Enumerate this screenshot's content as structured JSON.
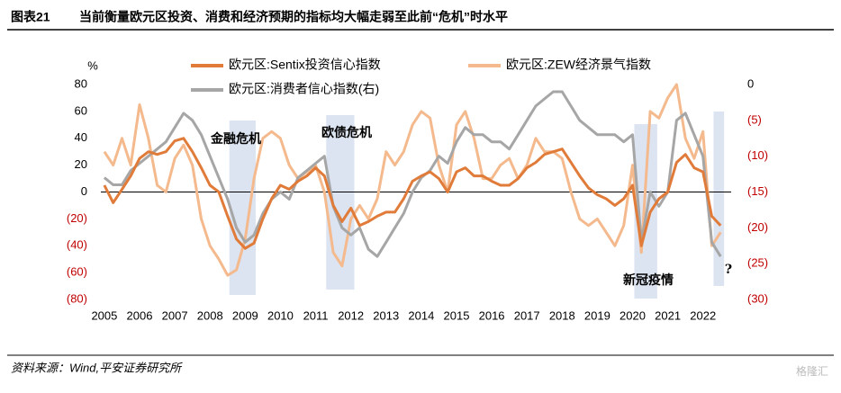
{
  "chart_data": {
    "type": "line",
    "title": "图表21",
    "subtitle": "当前衡量欧元区投资、消费和经济预期的指标均大幅走弱至此前“危机”时水平",
    "source": "资料来源：Wind,平安证券研究所",
    "watermark": "格隆汇",
    "y_unit": "%",
    "x": [
      2005,
      2005.25,
      2005.5,
      2005.75,
      2006,
      2006.25,
      2006.5,
      2006.75,
      2007,
      2007.25,
      2007.5,
      2007.75,
      2008,
      2008.25,
      2008.5,
      2008.75,
      2009,
      2009.25,
      2009.5,
      2009.75,
      2010,
      2010.25,
      2010.5,
      2010.75,
      2011,
      2011.25,
      2011.5,
      2011.75,
      2012,
      2012.25,
      2012.5,
      2012.75,
      2013,
      2013.25,
      2013.5,
      2013.75,
      2014,
      2014.25,
      2014.5,
      2014.75,
      2015,
      2015.25,
      2015.5,
      2015.75,
      2016,
      2016.25,
      2016.5,
      2016.75,
      2017,
      2017.25,
      2017.5,
      2017.75,
      2018,
      2018.25,
      2018.5,
      2018.75,
      2019,
      2019.25,
      2019.5,
      2019.75,
      2020,
      2020.25,
      2020.5,
      2020.75,
      2021,
      2021.25,
      2021.5,
      2021.75,
      2022,
      2022.25,
      2022.5
    ],
    "xlim": [
      2004.9,
      2022.8
    ],
    "xticks": [
      2005,
      2006,
      2007,
      2008,
      2009,
      2010,
      2011,
      2012,
      2013,
      2014,
      2015,
      2016,
      2017,
      2018,
      2019,
      2020,
      2021,
      2022
    ],
    "ylim": [
      -80,
      80
    ],
    "yticks": [
      {
        "value": -80,
        "label": "(80)"
      },
      {
        "value": -60,
        "label": "(60)"
      },
      {
        "value": -40,
        "label": "(40)"
      },
      {
        "value": -20,
        "label": "(20)"
      },
      0,
      20,
      40,
      60,
      80
    ],
    "y2lim": [
      -30,
      0
    ],
    "y2ticks": [
      {
        "value": -30,
        "label": "(30)"
      },
      {
        "value": -25,
        "label": "(25)"
      },
      {
        "value": -20,
        "label": "(20)"
      },
      {
        "value": -15,
        "label": "(15)"
      },
      {
        "value": -10,
        "label": "(10)"
      },
      {
        "value": -5,
        "label": "(5)"
      },
      0
    ],
    "negative_tick_color": "#c00000",
    "series": [
      {
        "name": "欧元区:Sentix投资信心指数",
        "color": "#e07b39",
        "values": [
          5,
          -8,
          2,
          12,
          25,
          30,
          28,
          30,
          38,
          40,
          30,
          18,
          5,
          0,
          -18,
          -35,
          -42,
          -38,
          -20,
          -5,
          5,
          2,
          8,
          12,
          18,
          12,
          -10,
          -22,
          -12,
          -25,
          -22,
          -18,
          -15,
          -15,
          -5,
          8,
          12,
          15,
          10,
          0,
          15,
          18,
          12,
          12,
          8,
          5,
          5,
          10,
          18,
          22,
          28,
          30,
          32,
          22,
          12,
          3,
          -2,
          -5,
          -10,
          -5,
          5,
          -40,
          -15,
          -5,
          0,
          22,
          28,
          18,
          15,
          -18,
          -25
        ]
      },
      {
        "name": "欧元区:ZEW经济景气指数",
        "color": "#f4b98c",
        "values": [
          30,
          20,
          40,
          20,
          65,
          40,
          5,
          0,
          25,
          35,
          20,
          -20,
          -40,
          -50,
          -62,
          -58,
          -35,
          10,
          40,
          45,
          40,
          20,
          10,
          15,
          20,
          0,
          -45,
          -55,
          -20,
          -10,
          -20,
          -5,
          30,
          20,
          30,
          50,
          60,
          55,
          20,
          0,
          50,
          60,
          40,
          10,
          10,
          20,
          25,
          10,
          20,
          40,
          30,
          30,
          25,
          0,
          -20,
          -25,
          -20,
          -30,
          -40,
          -25,
          20,
          -45,
          60,
          55,
          70,
          80,
          40,
          25,
          45,
          -40,
          -30
        ]
      },
      {
        "name": "欧元区:消费者信心指数(右)",
        "color": "#a6a6a6",
        "axis": "y2",
        "values": [
          -13,
          -14,
          -14,
          -12,
          -11,
          -10,
          -9,
          -8,
          -6,
          -4,
          -5,
          -7,
          -10,
          -13,
          -16,
          -20,
          -22,
          -21,
          -18,
          -16,
          -15,
          -16,
          -13,
          -12,
          -11,
          -10,
          -17,
          -20,
          -21,
          -20,
          -23,
          -24,
          -22,
          -20,
          -18,
          -15,
          -13,
          -12,
          -10,
          -11,
          -8,
          -6,
          -7,
          -7,
          -8,
          -8,
          -9,
          -7,
          -5,
          -3,
          -2,
          -1,
          -1,
          -3,
          -5,
          -6,
          -7,
          -7,
          -7,
          -8,
          -7,
          -22,
          -15,
          -17,
          -15,
          -5,
          -4,
          -7,
          -10,
          -22,
          -24
        ]
      }
    ],
    "shaded_periods": [
      {
        "label": "金融危机",
        "x": [
          2008.55,
          2009.3
        ]
      },
      {
        "label": "欧债危机",
        "x": [
          2011.3,
          2012.1
        ]
      },
      {
        "label": "新冠疫情",
        "x": [
          2020.05,
          2020.7
        ]
      },
      {
        "label": "?",
        "x": [
          2022.3,
          2022.6
        ]
      }
    ],
    "shade_color": "#d6dfee"
  }
}
